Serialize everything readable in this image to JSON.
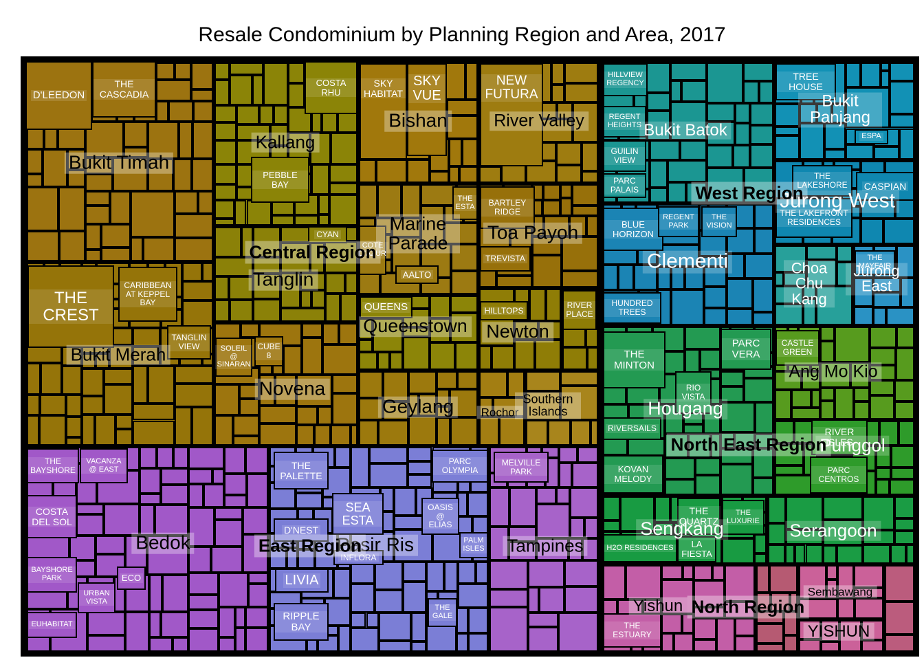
{
  "chart_data": {
    "type": "treemap",
    "title": "Resale Condominium by Planning Region and Area, 2017",
    "group_levels": [
      "planning_region",
      "planning_area",
      "project"
    ],
    "legend": "none",
    "regions": [
      {
        "label": "Central Region",
        "areas": [
          {
            "label": "Bukit Timah",
            "color": "#9c7310",
            "projects": [
              "D'LEEDON",
              "THE CASCADIA"
            ]
          },
          {
            "label": "Kallang",
            "color": "#8b8407",
            "projects": [
              "COSTA RHU",
              "PEBBLE BAY"
            ]
          },
          {
            "label": "Bishan",
            "color": "#a1780c",
            "projects": [
              "SKY HABITAT",
              "SKY VUE"
            ]
          },
          {
            "label": "River Valley",
            "color": "#9e7c10",
            "projects": [
              "NEW FUTURA"
            ]
          },
          {
            "label": "Marine Parade",
            "color": "#9c7a12",
            "projects": [
              "THE ESTA",
              "COTE D'AZUR",
              "AALTO"
            ]
          },
          {
            "label": "Toa Payoh",
            "color": "#97700a",
            "projects": [
              "BARTLEY RIDGE",
              "TREVISTA"
            ]
          },
          {
            "label": "Tanglin",
            "color": "#8b8108",
            "projects": [
              "CYAN"
            ]
          },
          {
            "label": "Queenstown",
            "color": "#8c8508",
            "projects": [
              "QUEENS"
            ]
          },
          {
            "label": "Newton",
            "color": "#8f7d06",
            "projects": [
              "HILLTOPS"
            ]
          },
          {
            "label": "",
            "color": "#8f7d06",
            "projects": [
              "RIVER PLACE"
            ]
          },
          {
            "label": "Novena",
            "color": "#9d750e",
            "projects": [
              "SOLEIL @ SINARAN",
              "CUBE 8"
            ]
          },
          {
            "label": "Geylang",
            "color": "#9c790d",
            "projects": []
          },
          {
            "label": "Bukit Merah",
            "color": "#957409",
            "projects": [
              "THE CREST",
              "CARIBBEAN AT KEPPEL BAY",
              "TANGLIN VIEW"
            ]
          },
          {
            "label": "Rochor",
            "color": "#a37e12",
            "projects": []
          },
          {
            "label": "Southern Islands",
            "color": "#a8851c",
            "projects": []
          }
        ]
      },
      {
        "label": "West Region",
        "areas": [
          {
            "label": "Bukit Batok",
            "color": "#1b9692",
            "projects": [
              "HILLVIEW REGENCY",
              "REGENT HEIGHTS",
              "GUILIN VIEW",
              "PARC PALAIS"
            ]
          },
          {
            "label": "Bukit Panjang",
            "color": "#1291b5",
            "projects": [
              "TREE HOUSE",
              "ESPA"
            ]
          },
          {
            "label": "Clementi",
            "color": "#1b84b4",
            "projects": [
              "BLUE HORIZON",
              "REGENT PARK",
              "THE VISION",
              "HUNDRED TREES"
            ]
          },
          {
            "label": "Jurong West",
            "color": "#0f87b0",
            "projects": [
              "THE LAKESHORE",
              "THE LAKEFRONT RESIDENCES",
              "CASPIAN"
            ]
          },
          {
            "label": "Choa Chu Kang",
            "color": "#27a09a",
            "projects": []
          },
          {
            "label": "Jurong East",
            "color": "#2a92c4",
            "projects": [
              "THE MAYFAIR"
            ]
          }
        ]
      },
      {
        "label": "North East Region",
        "areas": [
          {
            "label": "Hougang",
            "color": "#239a52",
            "projects": [
              "THE MINTON",
              "PARC VERA",
              "RIO VISTA",
              "RIVERSAILS",
              "KOVAN MELODY"
            ]
          },
          {
            "label": "Ang Mo Kio",
            "color": "#579b1e",
            "projects": [
              "CASTLE GREEN"
            ]
          },
          {
            "label": "Punggol",
            "color": "#2e9b2a",
            "projects": [
              "RIVER ISLES",
              "PARC CENTROS"
            ]
          },
          {
            "label": "Sengkang",
            "color": "#189b42",
            "projects": [
              "THE QUARTZ",
              "THE LUXURIE",
              "LA FIESTA",
              "H2O RESIDENCES"
            ]
          },
          {
            "label": "Serangoon",
            "color": "#1a9c44",
            "projects": []
          }
        ]
      },
      {
        "label": "East Region",
        "areas": [
          {
            "label": "Bedok",
            "color": "#a158c8",
            "projects": [
              "THE BAYSHORE",
              "VACANZA @ EAST",
              "COSTA DEL SOL",
              "BAYSHORE PARK",
              "EUHABITAT",
              "URBAN VISTA",
              "ECO"
            ]
          },
          {
            "label": "Pasir Ris",
            "color": "#7b7ed6",
            "projects": [
              "THE PALETTE",
              "PARC OLYMPIA",
              "SEA ESTA",
              "D'NEST",
              "OASIS @ ELIAS",
              "PALM ISLES",
              "INFLORA",
              "LIVIA",
              "RIPPLE BAY",
              "THE GALE"
            ]
          },
          {
            "label": "Tampines",
            "color": "#a763c9",
            "projects": [
              "MELVILLE PARK"
            ]
          }
        ]
      },
      {
        "label": "North Region",
        "areas": [
          {
            "label": "Yishun",
            "color": "#c35ea7",
            "projects": [
              "THE ESTUARY"
            ]
          },
          {
            "label": "",
            "color": "#b65a72",
            "projects": []
          },
          {
            "label": "Sembawang",
            "color": "#cb6199",
            "projects": []
          },
          {
            "label": "YISHUN",
            "color": "#cb6199",
            "projects": []
          },
          {
            "label": "",
            "color": "#bb5c7d",
            "projects": []
          }
        ]
      }
    ]
  }
}
